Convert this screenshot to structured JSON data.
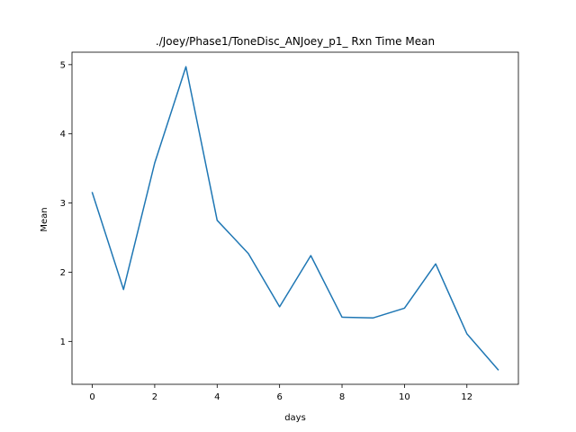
{
  "chart_data": {
    "type": "line",
    "title": "./Joey/Phase1/ToneDisc_ANJoey_p1_ Rxn Time Mean",
    "xlabel": "days",
    "ylabel": "Mean",
    "xlim": [
      -0.65,
      13.65
    ],
    "ylim": [
      0.38,
      5.18
    ],
    "xticks": [
      0,
      2,
      4,
      6,
      8,
      10,
      12
    ],
    "yticks": [
      1,
      2,
      3,
      4,
      5
    ],
    "grid": false,
    "series": [
      {
        "x": [
          0,
          1,
          2,
          3,
          4,
          5,
          6,
          7,
          8,
          9,
          10,
          11,
          12,
          13
        ],
        "values": [
          3.15,
          1.75,
          3.58,
          4.97,
          2.75,
          2.27,
          1.5,
          2.24,
          1.35,
          1.34,
          1.48,
          2.12,
          1.11,
          0.59
        ],
        "color": "#1f77b4"
      }
    ]
  }
}
